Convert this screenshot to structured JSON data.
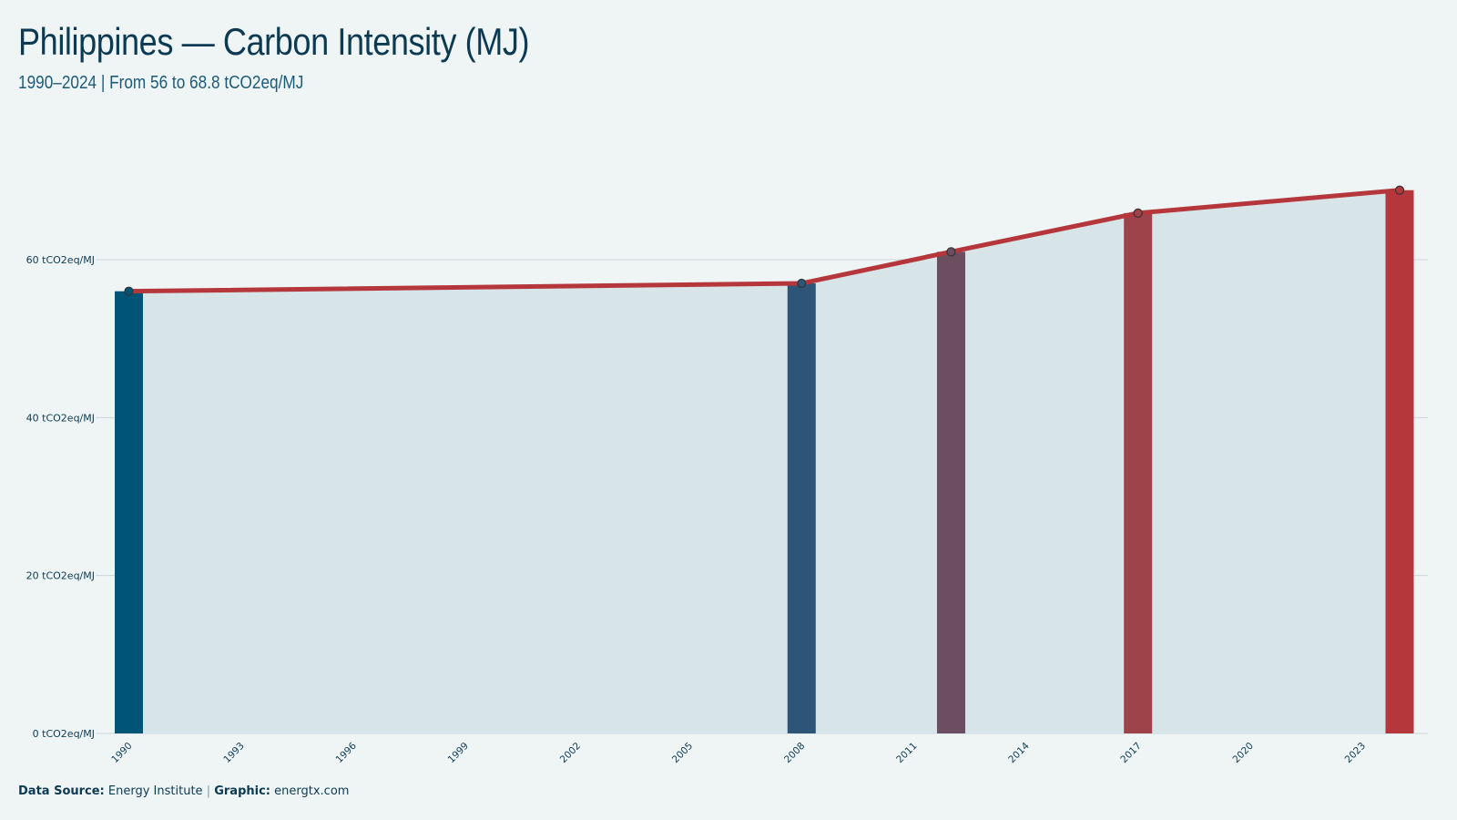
{
  "title": "Philippines — Carbon Intensity (MJ)",
  "subtitle": "1990–2024 | From 56 to 68.8 tCO2eq/MJ",
  "footer": {
    "source_label": "Data Source:",
    "source_value": "Energy Institute",
    "separator": "|",
    "graphic_label": "Graphic:",
    "graphic_value": "energtx.com"
  },
  "colors": {
    "background": "#eff5f5",
    "area_fill": "#d7e4e8",
    "line": "#b5373b",
    "grid": "#c9d6db"
  },
  "chart_data": {
    "type": "bar",
    "title": "Philippines — Carbon Intensity (MJ)",
    "subtitle": "1990–2024 | From 56 to 68.8 tCO2eq/MJ",
    "xlabel": "",
    "ylabel": "",
    "x": [
      1990,
      2008,
      2012,
      2017,
      2024
    ],
    "values": [
      56,
      57,
      61,
      65.9,
      68.8
    ],
    "bar_colors": [
      "#005577",
      "#2d5577",
      "#6b4f60",
      "#9e4349",
      "#b5373b"
    ],
    "overlay": "line with markers and shaded area",
    "unit": "tCO2eq/MJ",
    "ylim": [
      0,
      75
    ],
    "xlim": [
      1990,
      2024
    ],
    "y_ticks": [
      0,
      20,
      40,
      60
    ],
    "y_tick_labels": [
      "0 tCO2eq/MJ",
      "20 tCO2eq/MJ",
      "40 tCO2eq/MJ",
      "60 tCO2eq/MJ"
    ],
    "x_ticks": [
      1990,
      1993,
      1996,
      1999,
      2002,
      2005,
      2008,
      2011,
      2014,
      2017,
      2020,
      2023
    ],
    "x_tick_labels": [
      "1990",
      "1993",
      "1996",
      "1999",
      "2002",
      "2005",
      "2008",
      "2011",
      "2014",
      "2017",
      "2020",
      "2023"
    ],
    "grid": "horizontal",
    "legend": "none"
  }
}
